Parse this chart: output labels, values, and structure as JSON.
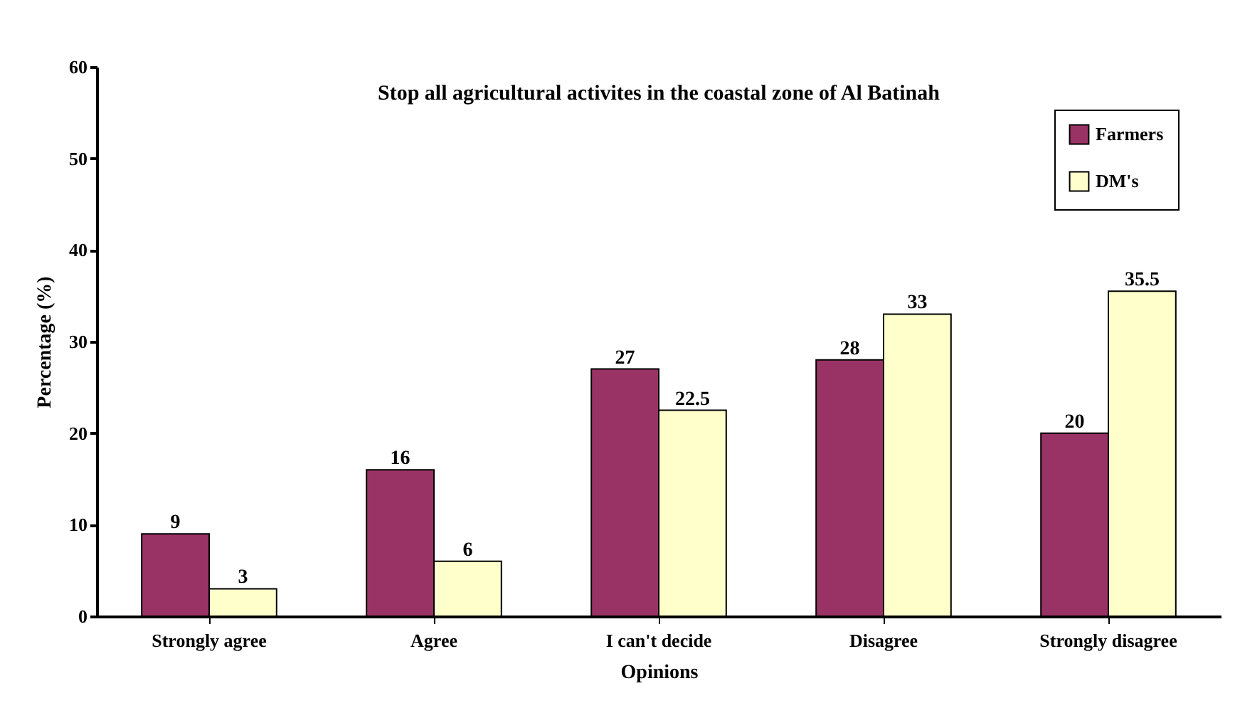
{
  "chart_data": {
    "type": "bar",
    "title": "Stop all agricultural activites in the coastal zone of Al Batinah",
    "xlabel": "Opinions",
    "ylabel": "Percentage (%)",
    "categories": [
      "Strongly agree",
      "Agree",
      "I can't decide",
      "Disagree",
      "Strongly disagree"
    ],
    "series": [
      {
        "name": "Farmers",
        "color": "#993366",
        "values": [
          9,
          16,
          27,
          28,
          20
        ]
      },
      {
        "name": "DM's",
        "color": "#ffffcc",
        "values": [
          3,
          6,
          22.5,
          33,
          35.5
        ]
      }
    ],
    "ylim": [
      0,
      60
    ],
    "yticks": [
      0,
      10,
      20,
      30,
      40,
      50,
      60
    ],
    "data_labels": true,
    "legend": "top right",
    "grid": false
  }
}
